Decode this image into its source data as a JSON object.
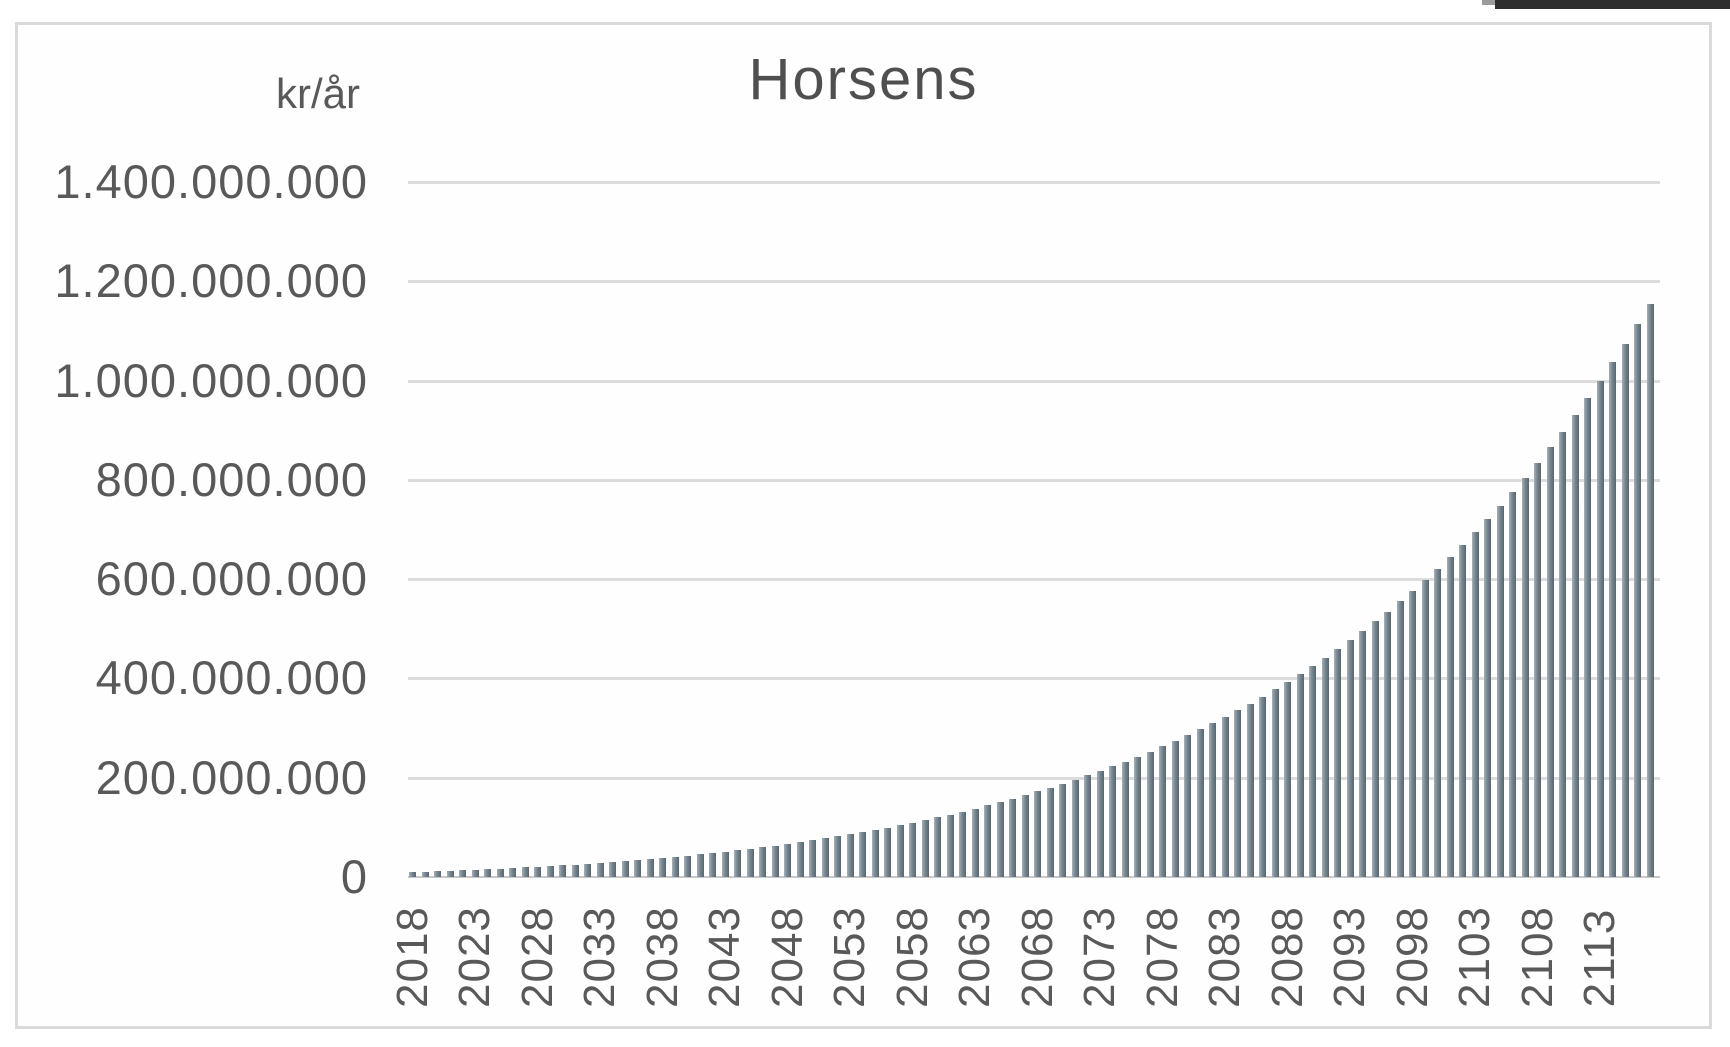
{
  "window": {
    "top_right_bar": {
      "color": "#2d2d2d",
      "notch_color": "#9b9b9b"
    }
  },
  "chart": {
    "title": "Horsens",
    "y_axis_unit_label": "kr/år",
    "y_ticks": [
      "1.400.000.000",
      "1.200.000.000",
      "1.000.000.000",
      "800.000.000",
      "600.000.000",
      "400.000.000",
      "200.000.000",
      "0"
    ],
    "x_tick_labels": [
      "2018",
      "2023",
      "2028",
      "2033",
      "2038",
      "2043",
      "2048",
      "2053",
      "2058",
      "2063",
      "2068",
      "2073",
      "2078",
      "2083",
      "2088",
      "2093",
      "2098",
      "2103",
      "2108",
      "2113"
    ],
    "colors": {
      "bar_light": "#a6b1ba",
      "bar_mid": "#77868f",
      "bar_dark": "#57666f",
      "gridline": "#dcdcdc",
      "axis_line": "#c8c8c8",
      "tick_text": "#595959",
      "title_text": "#4f4f4f",
      "chart_border": "#dadada"
    }
  },
  "chart_data": {
    "type": "bar",
    "title": "Horsens",
    "ylabel": "kr/år",
    "xlabel": "",
    "ylim": [
      0,
      1400000000
    ],
    "y_gridline_step": 200000000,
    "grid": true,
    "legend": false,
    "x_years_range": [
      2018,
      2117
    ],
    "x_step_years": 1,
    "x_labeled_every": 5,
    "values_unit": "million kr per year",
    "values_million_kr": [
      10.0,
      10.8,
      11.7,
      12.6,
      13.5,
      14.5,
      15.6,
      16.8,
      18.0,
      19.2,
      20.6,
      22.0,
      23.5,
      25.0,
      26.7,
      28.4,
      30.2,
      32.1,
      34.1,
      36.2,
      38.4,
      40.7,
      43.1,
      45.6,
      48.2,
      51.0,
      53.9,
      56.8,
      60.0,
      63.2,
      66.6,
      70.2,
      73.9,
      77.7,
      81.7,
      85.9,
      90.2,
      94.8,
      99.5,
      104.3,
      109.4,
      114.7,
      120.2,
      125.9,
      131.8,
      138.0,
      144.4,
      151.0,
      157.9,
      165.0,
      172.4,
      180.1,
      188.1,
      196.3,
      204.9,
      213.8,
      223.0,
      232.6,
      242.5,
      252.8,
      263.4,
      274.4,
      285.8,
      297.7,
      309.9,
      322.6,
      335.8,
      349.4,
      363.5,
      378.1,
      393.2,
      408.8,
      425.0,
      441.8,
      459.1,
      477.1,
      495.6,
      514.9,
      534.7,
      555.3,
      576.6,
      598.7,
      621.4,
      645.0,
      669.4,
      694.7,
      720.8,
      747.8,
      775.7,
      804.6,
      834.5,
      865.4,
      897.4,
      930.5,
      964.7,
      1000.1,
      1036.7,
      1074.5,
      1113.6,
      1154.1
    ]
  }
}
